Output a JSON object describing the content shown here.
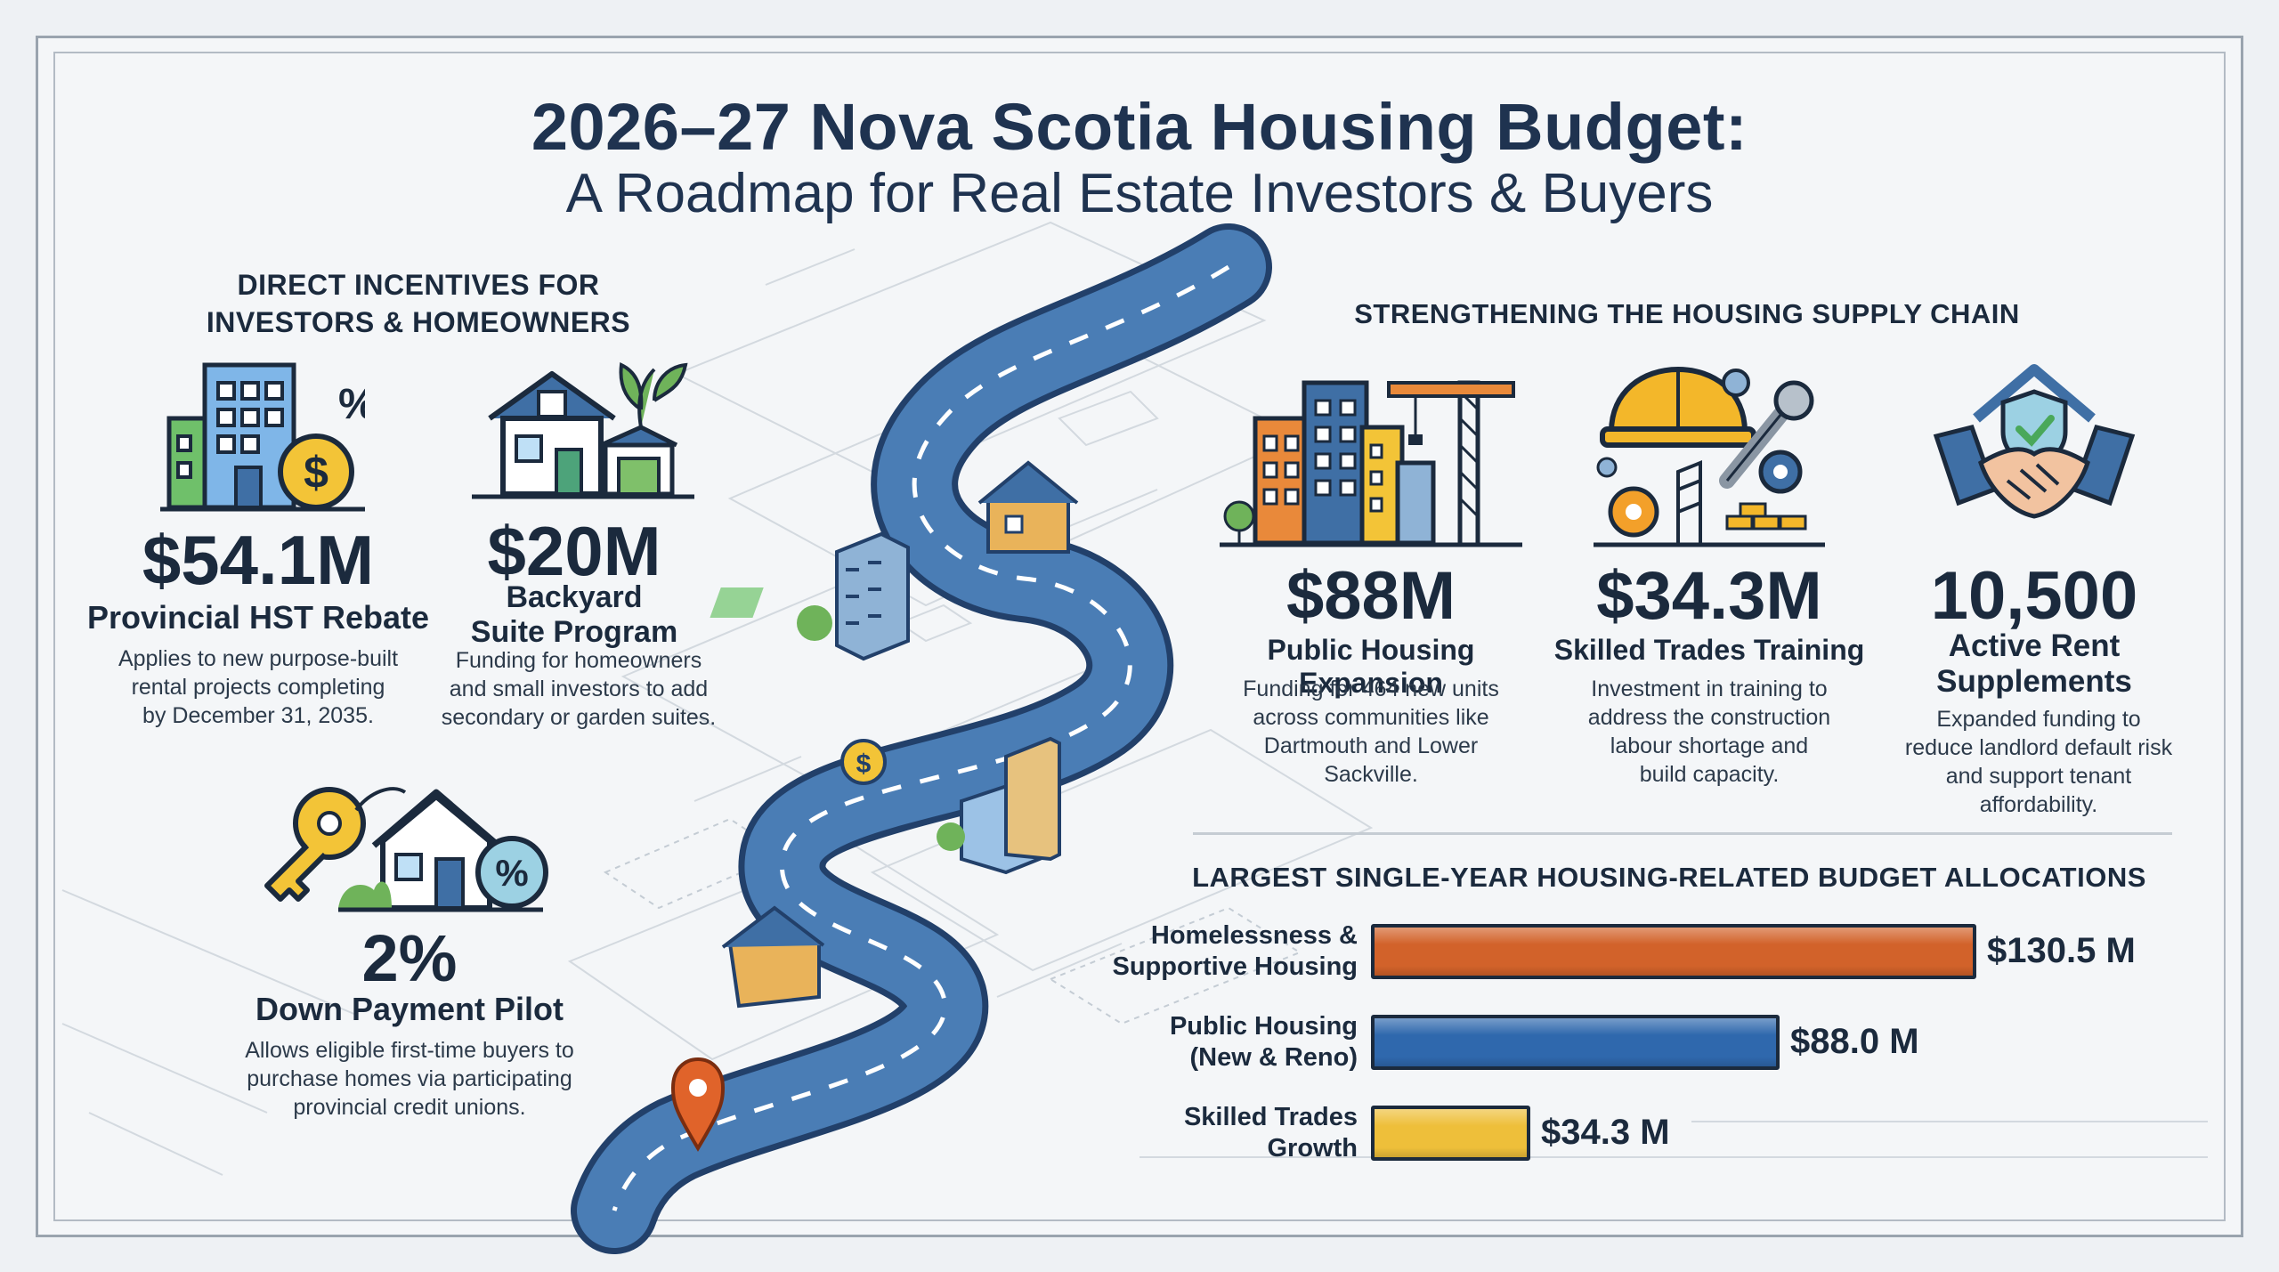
{
  "title": {
    "line1": "2026–27 Nova Scotia Housing Budget:",
    "line2": "A Roadmap for Real Estate Investors & Buyers"
  },
  "left_section": {
    "heading_line1": "DIRECT INCENTIVES FOR",
    "heading_line2": "INVESTORS & HOMEOWNERS",
    "items": [
      {
        "value": "$54.1M",
        "name": "Provincial HST Rebate",
        "desc_lines": [
          "Applies to new purpose-built",
          "rental projects completing",
          "by December 31, 2035."
        ],
        "icon": "building-coin-percent-icon"
      },
      {
        "value": "$20M",
        "name_lines": [
          "Backyard",
          "Suite Program"
        ],
        "desc_lines": [
          "Funding for homeowners",
          "and small investors to add",
          "secondary or garden suites."
        ],
        "icon": "house-garden-suite-icon"
      },
      {
        "value": "2%",
        "name": "Down Payment Pilot",
        "desc_lines": [
          "Allows eligible first-time buyers to",
          "purchase homes via participating",
          "provincial credit unions."
        ],
        "icon": "key-house-percent-icon"
      }
    ]
  },
  "right_section": {
    "heading": "STRENGTHENING THE HOUSING SUPPLY CHAIN",
    "items": [
      {
        "value": "$88M",
        "name": "Public Housing Expansion",
        "desc_lines": [
          "Funding for 464 new units",
          "across communities like",
          "Dartmouth and Lower",
          "Sackville."
        ],
        "icon": "buildings-crane-icon"
      },
      {
        "value": "$34.3M",
        "name": "Skilled Trades Training",
        "desc_lines": [
          "Investment in training to",
          "address the construction",
          "labour shortage and",
          "build capacity."
        ],
        "icon": "hardhat-wrench-gears-icon"
      },
      {
        "value": "10,500",
        "name_lines": [
          "Active Rent",
          "Supplements"
        ],
        "desc_lines": [
          "Expanded funding to",
          "reduce landlord default risk",
          "and support tenant",
          "affordability."
        ],
        "icon": "handshake-house-shield-icon"
      }
    ]
  },
  "chart_data": {
    "type": "bar",
    "orientation": "horizontal",
    "title": "LARGEST SINGLE-YEAR HOUSING-RELATED BUDGET ALLOCATIONS",
    "categories": [
      [
        "Homelessness &",
        "Supportive Housing"
      ],
      [
        "Public Housing",
        "(New & Reno)"
      ],
      [
        "Skilled Trades",
        "Growth"
      ]
    ],
    "values": [
      130.5,
      88.0,
      34.3
    ],
    "value_labels": [
      "$130.5 M",
      "$88.0 M",
      "$34.3 M"
    ],
    "colors": [
      "#d2622a",
      "#2f68ad",
      "#eebf3a"
    ],
    "xlim": [
      0,
      130.5
    ],
    "grid": false,
    "legend": "none"
  },
  "colors": {
    "title": "#1f3350",
    "road": "#3f6fa5",
    "accent_orange": "#e07a2c",
    "accent_green": "#5aa64a",
    "accent_yellow": "#f3c437"
  }
}
